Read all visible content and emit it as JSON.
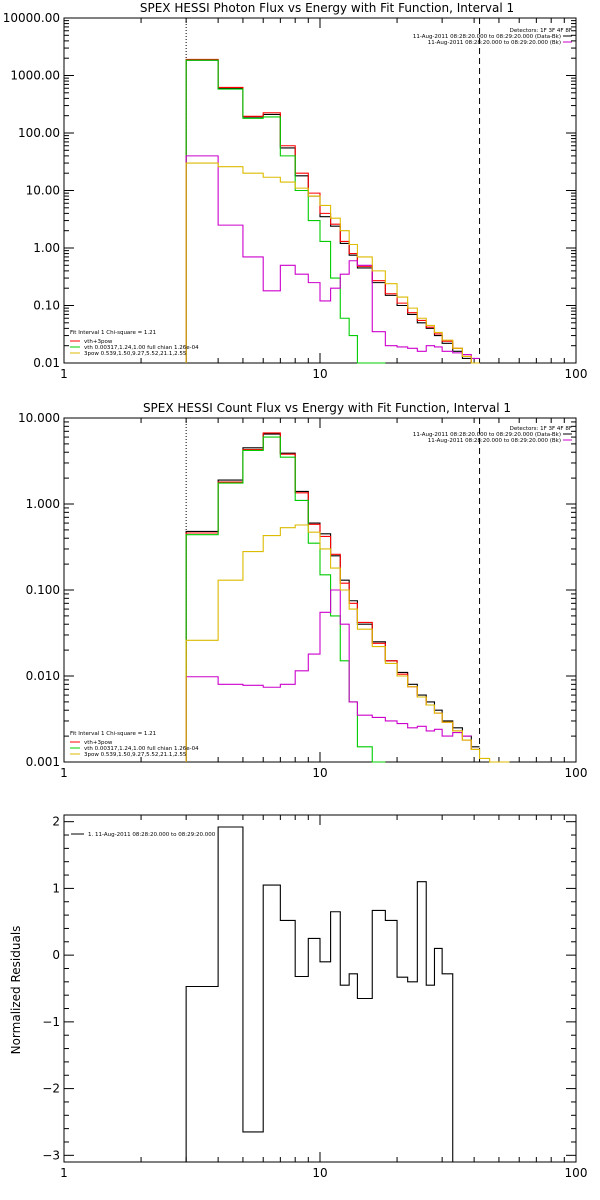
{
  "colors": {
    "black": "#000000",
    "red": "#ff0000",
    "green": "#00cc00",
    "magenta": "#cc00cc",
    "yellow": "#ddbb00"
  },
  "chart_data": [
    {
      "type": "line",
      "title": "SPEX HESSI Photon Flux vs Energy with Fit Function, Interval 1",
      "xscale": "log",
      "yscale": "log",
      "xlim": [
        1,
        100
      ],
      "ylim": [
        0.01,
        10000
      ],
      "xticks": [
        1,
        10,
        100
      ],
      "xtick_labels": [
        "1",
        "10",
        "100"
      ],
      "yticks": [
        0.01,
        0.1,
        1,
        10,
        100,
        1000,
        10000
      ],
      "ytick_labels": [
        "0.01",
        "0.10",
        "1.00",
        "10.00",
        "100.00",
        "1000.00",
        "10000.00"
      ],
      "vlines": [
        {
          "x": 3,
          "style": "dotted"
        },
        {
          "x": 42,
          "style": "dashed"
        }
      ],
      "legend_top": [
        "Detectors: 1F 3F 4F 8F",
        "11-Aug-2011 08:28:20.000 to 08:29:20.000 (Data-Bk)",
        "11-Aug-2011 08:28:20.000 to 08:29:20.000 (Bk)"
      ],
      "legend_bottom": [
        "Fit Interval 1    Chi-square = 1.21",
        "vth+3pow",
        "vth 0.00317,1.24,1.00  full chian 1.26e-04",
        "3pow 0.539,1.50,9.27,5.52,21.1,2.55"
      ],
      "bin_edges": [
        3,
        4,
        5,
        6,
        7,
        8,
        9,
        10,
        11,
        12,
        13,
        14,
        16,
        18,
        20,
        22,
        24,
        26,
        28,
        30,
        33,
        36,
        39,
        42
      ],
      "series": [
        {
          "name": "Data-Bk",
          "color": "#000000",
          "values": [
            1850,
            600,
            190,
            210,
            55,
            18,
            8,
            3.5,
            2.4,
            1.2,
            0.75,
            0.45,
            0.25,
            0.15,
            0.1,
            0.07,
            0.05,
            0.04,
            0.03,
            0.022,
            0.016,
            0.012,
            0.01
          ]
        },
        {
          "name": "vth+3pow",
          "color": "#ff0000",
          "values": [
            1900,
            620,
            195,
            225,
            60,
            20,
            9,
            4.0,
            2.6,
            1.3,
            0.8,
            0.48,
            0.27,
            0.16,
            0.11,
            0.075,
            0.055,
            0.042,
            0.032,
            0.024,
            0.018,
            0.013,
            0.01
          ]
        },
        {
          "name": "vth",
          "color": "#00cc00",
          "values": [
            1850,
            580,
            180,
            190,
            40,
            10,
            3,
            1.3,
            0.3,
            0.06,
            0.03,
            0.01,
            0.005
          ]
        },
        {
          "name": "Bk",
          "color": "#cc00cc",
          "values": [
            40,
            2.5,
            0.7,
            0.18,
            0.5,
            0.35,
            0.25,
            0.12,
            0.2,
            0.35,
            0.6,
            0.5,
            0.035,
            0.02,
            0.019,
            0.018,
            0.016,
            0.02,
            0.019,
            0.016,
            0.015,
            0.014,
            0.012
          ]
        },
        {
          "name": "3pow",
          "color": "#ddbb00",
          "values": [
            30,
            26,
            20,
            17,
            14,
            11,
            8,
            5.5,
            3.3,
            2.0,
            1.15,
            0.7,
            0.4,
            0.24,
            0.14,
            0.09,
            0.06,
            0.045,
            0.034,
            0.025,
            0.018,
            0.013,
            0.01
          ]
        }
      ]
    },
    {
      "type": "line",
      "title": "SPEX HESSI Count Flux vs Energy with Fit Function, Interval 1",
      "xscale": "log",
      "yscale": "log",
      "xlim": [
        1,
        100
      ],
      "ylim": [
        0.001,
        10
      ],
      "xticks": [
        1,
        10,
        100
      ],
      "xtick_labels": [
        "1",
        "10",
        "100"
      ],
      "yticks": [
        0.001,
        0.01,
        0.1,
        1,
        10
      ],
      "ytick_labels": [
        "0.001",
        "0.010",
        "0.100",
        "1.000",
        "10.000"
      ],
      "vlines": [
        {
          "x": 3,
          "style": "dotted"
        },
        {
          "x": 42,
          "style": "dashed"
        }
      ],
      "legend_top": [
        "Detectors: 1F 3F 4F 8F",
        "11-Aug-2011 08:28:20.000 to 08:29:20.000 (Data-Bk)",
        "11-Aug-2011 08:28:20.000 to 08:29:20.000 (Bk)"
      ],
      "legend_bottom": [
        "Fit Interval 1    Chi-square = 1.21",
        "vth+3pow",
        "vth 0.00317,1.24,1.00  full chian 1.26e-04",
        "3pow 0.539,1.50,9.27,5.52,21.1,2.55"
      ],
      "bin_edges": [
        3,
        4,
        5,
        6,
        7,
        8,
        9,
        10,
        11,
        12,
        13,
        14,
        16,
        18,
        20,
        22,
        24,
        26,
        28,
        30,
        33,
        36,
        39,
        42,
        46,
        50,
        55
      ],
      "series": [
        {
          "name": "Data-Bk",
          "color": "#000000",
          "values": [
            0.48,
            1.9,
            4.5,
            6.5,
            3.9,
            1.4,
            0.6,
            0.45,
            0.25,
            0.13,
            0.075,
            0.04,
            0.025,
            0.015,
            0.011,
            0.008,
            0.006,
            0.005,
            0.004,
            0.003,
            0.0025,
            0.002,
            0.0015
          ]
        },
        {
          "name": "vth+3pow",
          "color": "#ff0000",
          "values": [
            0.46,
            1.8,
            4.3,
            6.7,
            3.8,
            1.35,
            0.58,
            0.42,
            0.26,
            0.12,
            0.07,
            0.042,
            0.024,
            0.015,
            0.0105,
            0.0075,
            0.0057,
            0.0046,
            0.0037,
            0.0029,
            0.0023,
            0.0018,
            0.0014
          ]
        },
        {
          "name": "vth",
          "color": "#00cc00",
          "values": [
            0.44,
            1.75,
            4.2,
            6.0,
            3.5,
            1.1,
            0.35,
            0.15,
            0.05,
            0.015,
            0.005,
            0.0015,
            0.0008
          ]
        },
        {
          "name": "Bk",
          "color": "#cc00cc",
          "values": [
            0.0098,
            0.008,
            0.0078,
            0.0074,
            0.008,
            0.0115,
            0.018,
            0.055,
            0.1,
            0.04,
            0.005,
            0.0035,
            0.0033,
            0.003,
            0.0028,
            0.0025,
            0.0026,
            0.0023,
            0.0024,
            0.002,
            0.0022,
            0.002
          ]
        },
        {
          "name": "3pow",
          "color": "#ddbb00",
          "values": [
            0.026,
            0.13,
            0.28,
            0.43,
            0.53,
            0.57,
            0.47,
            0.3,
            0.18,
            0.1,
            0.06,
            0.035,
            0.022,
            0.014,
            0.01,
            0.0075,
            0.0057,
            0.0046,
            0.0037,
            0.0029,
            0.0023,
            0.0018,
            0.0014,
            0.0011,
            0.0009,
            0.0007
          ]
        }
      ]
    },
    {
      "type": "line",
      "title": "",
      "ylabel": "Normalized Residuals",
      "xscale": "log",
      "xlim": [
        1,
        100
      ],
      "ylim": [
        -3.1,
        2.1
      ],
      "xticks": [
        1,
        10,
        100
      ],
      "xtick_labels": [
        "1",
        "10",
        "100"
      ],
      "yticks": [
        -3,
        -2,
        -1,
        0,
        1,
        2
      ],
      "ytick_labels": [
        "−3",
        "−2",
        "−1",
        "0",
        "1",
        "2"
      ],
      "legend": "1. 11-Aug-2011 08:28:20.000 to 08:29:20.000",
      "bin_edges": [
        3,
        4,
        5,
        6,
        7,
        8,
        9,
        10,
        11,
        12,
        13,
        14,
        16,
        18,
        20,
        22,
        24,
        26,
        28,
        30,
        33,
        36,
        39,
        42
      ],
      "series": [
        {
          "name": "1. 11-Aug-2011 08:28:20.000 to 08:29:20.000",
          "color": "#000000",
          "values": [
            -0.47,
            1.92,
            -2.65,
            1.05,
            0.52,
            -0.32,
            0.25,
            -0.1,
            0.65,
            -0.45,
            -0.28,
            -0.65,
            0.67,
            0.52,
            -0.33,
            -0.4,
            1.1,
            -0.45,
            0.1,
            -0.28
          ]
        }
      ]
    }
  ]
}
